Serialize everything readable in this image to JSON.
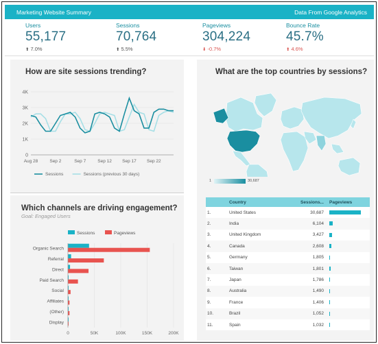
{
  "header": {
    "title": "Marketing Website Summary",
    "source": "Data From Google Analytics"
  },
  "kpis": [
    {
      "label": "Users",
      "value": "55,177",
      "delta": "7.0%",
      "dir": "up"
    },
    {
      "label": "Sessions",
      "value": "70,764",
      "delta": "5.5%",
      "dir": "up"
    },
    {
      "label": "Pageviews",
      "value": "304,224",
      "delta": "-0.7%",
      "dir": "down"
    },
    {
      "label": "Bounce Rate",
      "value": "45.7%",
      "delta": "4.6%",
      "dir": "down"
    }
  ],
  "colors": {
    "accent": "#1ab2c6",
    "red": "#e8534f",
    "light_teal": "#a6dfe6",
    "dark_teal": "#1a8ea0"
  },
  "trend": {
    "title": "How are site sessions trending?",
    "chart_data": {
      "type": "line",
      "x": [
        "Aug 28",
        "Aug 29",
        "Aug 30",
        "Aug 31",
        "Sep 1",
        "Sep 2",
        "Sep 3",
        "Sep 4",
        "Sep 5",
        "Sep 6",
        "Sep 7",
        "Sep 8",
        "Sep 9",
        "Sep 10",
        "Sep 11",
        "Sep 12",
        "Sep 13",
        "Sep 14",
        "Sep 15",
        "Sep 16",
        "Sep 17",
        "Sep 18",
        "Sep 19",
        "Sep 20",
        "Sep 21",
        "Sep 22",
        "Sep 23",
        "Sep 24",
        "Sep 25",
        "Sep 26"
      ],
      "x_ticks": [
        "Aug 28",
        "Sep 2",
        "Sep 7",
        "Sep 12",
        "Sep 17",
        "Sep 22"
      ],
      "y_ticks": [
        "0",
        "1K",
        "2K",
        "3K",
        "4K"
      ],
      "ylim": [
        0,
        4000
      ],
      "series": [
        {
          "name": "Sessions",
          "color": "#1a8ea0",
          "values": [
            2500,
            2400,
            1900,
            1500,
            1500,
            2000,
            2500,
            2600,
            2700,
            2400,
            1700,
            1400,
            1500,
            2600,
            2700,
            2600,
            2400,
            1700,
            1500,
            2600,
            3600,
            2800,
            2600,
            1700,
            1700,
            2700,
            2900,
            2900,
            2800,
            2800
          ]
        },
        {
          "name": "Sessions (previous 30 days)",
          "color": "#a6dfe6",
          "values": [
            2400,
            2600,
            2600,
            2300,
            1500,
            1500,
            2100,
            2600,
            2600,
            2700,
            2300,
            1600,
            1500,
            2000,
            2600,
            2700,
            2600,
            2500,
            1500,
            1600,
            2400,
            3200,
            2700,
            2600,
            1600,
            1500,
            2500,
            2700,
            2800,
            2700
          ]
        }
      ]
    }
  },
  "channels": {
    "title": "Which channels are driving engagement?",
    "subtitle": "Goal: Engaged Users",
    "chart_data": {
      "type": "bar",
      "categories": [
        "Organic Search",
        "Referral",
        "Direct",
        "Paid Search",
        "Social",
        "Affiliates",
        "(Other)",
        "Display"
      ],
      "series": [
        {
          "name": "Sessions",
          "color": "#1ab2c6",
          "values": [
            40000,
            6000,
            4000,
            1000,
            500,
            300,
            300,
            200
          ]
        },
        {
          "name": "Pageviews",
          "color": "#e8534f",
          "values": [
            155000,
            68000,
            39000,
            19000,
            5000,
            3000,
            3000,
            1000
          ]
        }
      ],
      "x_ticks": [
        "0",
        "50K",
        "100K",
        "150K",
        "200K"
      ],
      "xlim": [
        0,
        200000
      ]
    }
  },
  "countries": {
    "title": "What are the top countries by sessions?",
    "legend_min": "1",
    "legend_max": "30,687",
    "table": {
      "headers": [
        "",
        "Country",
        "Sessions...",
        "Pageviews"
      ],
      "rows": [
        {
          "rank": "1.",
          "country": "United States",
          "sessions": "30,687",
          "pv": 100
        },
        {
          "rank": "2.",
          "country": "India",
          "sessions": "6,104",
          "pv": 10
        },
        {
          "rank": "3.",
          "country": "United Kingdom",
          "sessions": "3,427",
          "pv": 8
        },
        {
          "rank": "4.",
          "country": "Canada",
          "sessions": "2,608",
          "pv": 7
        },
        {
          "rank": "5.",
          "country": "Germany",
          "sessions": "1,805",
          "pv": 3
        },
        {
          "rank": "6.",
          "country": "Taiwan",
          "sessions": "1,801",
          "pv": 5
        },
        {
          "rank": "7.",
          "country": "Japan",
          "sessions": "1,786",
          "pv": 3
        },
        {
          "rank": "8.",
          "country": "Australia",
          "sessions": "1,490",
          "pv": 3
        },
        {
          "rank": "9.",
          "country": "France",
          "sessions": "1,406",
          "pv": 3
        },
        {
          "rank": "10.",
          "country": "Brazil",
          "sessions": "1,052",
          "pv": 3
        },
        {
          "rank": "11.",
          "country": "Spain",
          "sessions": "1,032",
          "pv": 3
        }
      ]
    }
  }
}
